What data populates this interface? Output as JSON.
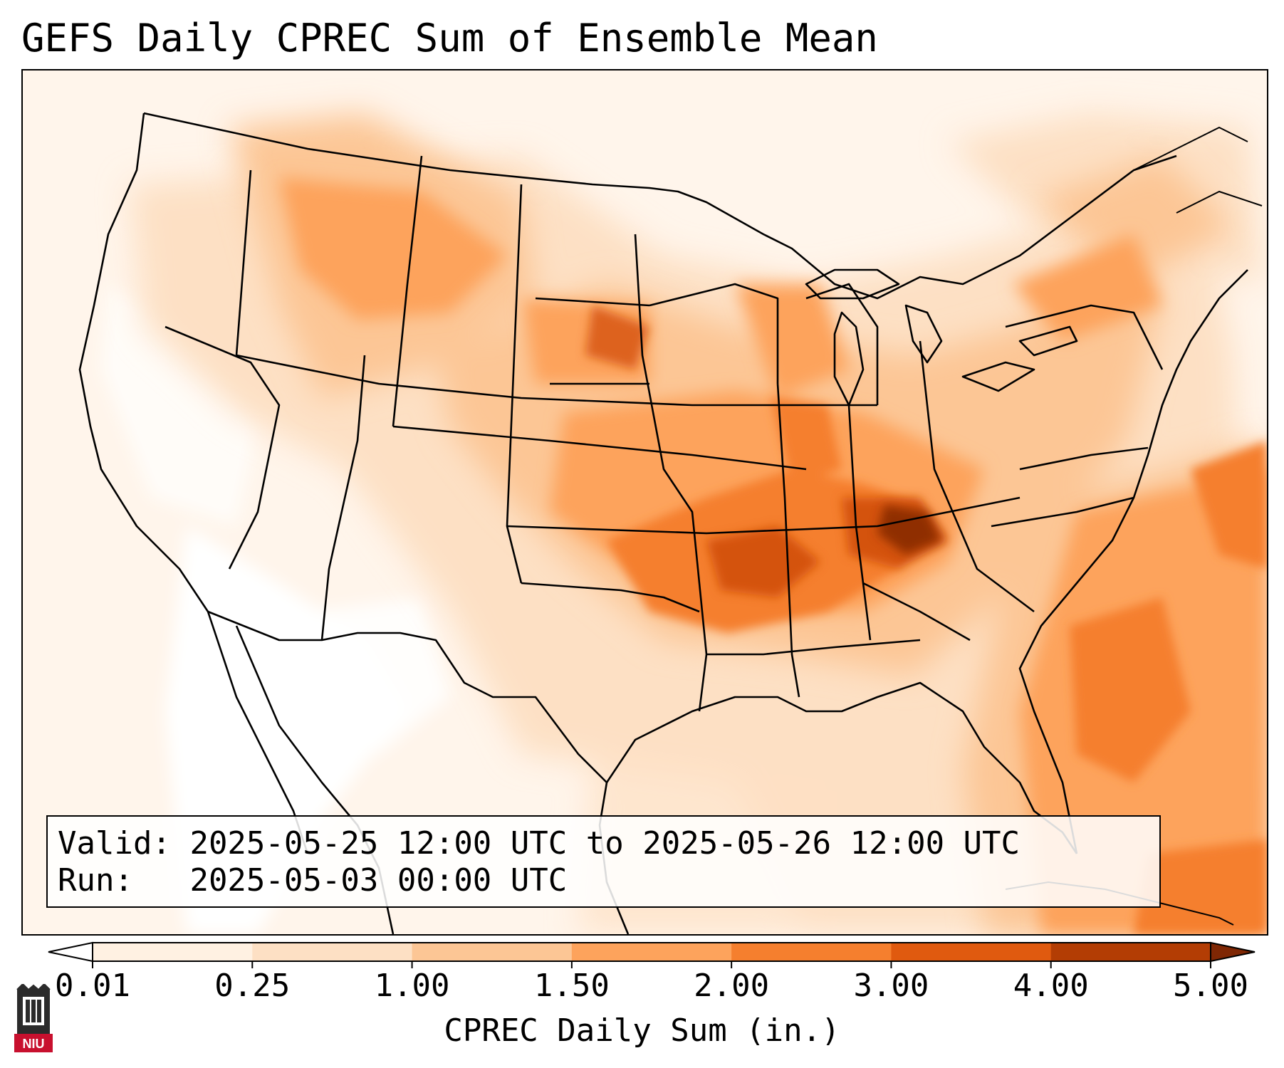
{
  "title": "GEFS Daily CPREC Sum of Ensemble Mean",
  "info": {
    "valid_label": "Valid:",
    "valid_value": "2025-05-25 12:00 UTC to 2025-05-26 12:00 UTC",
    "run_label": "Run:",
    "run_value": "2025-05-03 00:00 UTC"
  },
  "colorbar": {
    "label": "CPREC Daily Sum (in.)",
    "ticks": [
      "0.01",
      "0.25",
      "1.00",
      "1.50",
      "2.00",
      "3.00",
      "4.00",
      "5.00"
    ],
    "colors": [
      "#fff1e2",
      "#fde0c4",
      "#fcc695",
      "#fda35c",
      "#f57f2e",
      "#e05a0f",
      "#b33d04",
      "#7f2704"
    ],
    "under_color": "#ffffff",
    "over_color": "#7f2704",
    "extend": "both"
  },
  "map": {
    "projection": "lambert-conformal",
    "region": "CONUS",
    "max_region": "Ohio Valley / Kentucky"
  },
  "logo": {
    "icon": "niu-seal-icon",
    "text": "NIU",
    "color": "#c8102e"
  }
}
